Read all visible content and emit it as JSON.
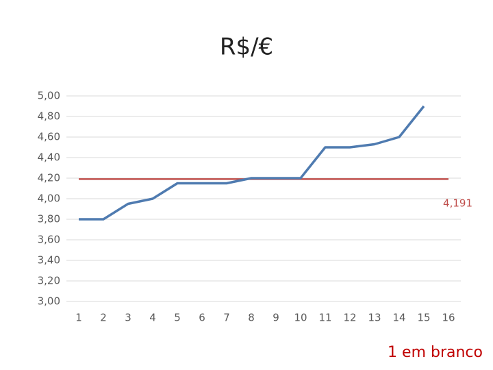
{
  "chart_data": {
    "type": "line",
    "title": "R$/€",
    "categories": [
      "1",
      "2",
      "3",
      "4",
      "5",
      "6",
      "7",
      "8",
      "9",
      "10",
      "11",
      "12",
      "13",
      "14",
      "15",
      "16"
    ],
    "series": [
      {
        "color": "#4f7bb0",
        "values": [
          3.8,
          3.8,
          3.95,
          4.0,
          4.15,
          4.15,
          4.15,
          4.2,
          4.2,
          4.2,
          4.5,
          4.5,
          4.53,
          4.6,
          4.9,
          null
        ]
      }
    ],
    "reference_line": {
      "value": 4.191,
      "label": "4,191",
      "color": "#c0504d"
    },
    "ylim": [
      3,
      5
    ],
    "yticks": [
      {
        "value": 3,
        "label": "3,00"
      },
      {
        "value": 3.2,
        "label": "3,20"
      },
      {
        "value": 3.4,
        "label": "3,40"
      },
      {
        "value": 3.6,
        "label": "3,60"
      },
      {
        "value": 3.8,
        "label": "3,80"
      },
      {
        "value": 4,
        "label": "4,00"
      },
      {
        "value": 4.2,
        "label": "4,20"
      },
      {
        "value": 4.4,
        "label": "4,40"
      },
      {
        "value": 4.6,
        "label": "4,60"
      },
      {
        "value": 4.8,
        "label": "4,80"
      },
      {
        "value": 5,
        "label": "5,00"
      }
    ],
    "grid": true,
    "annotation": "1 em branco"
  }
}
